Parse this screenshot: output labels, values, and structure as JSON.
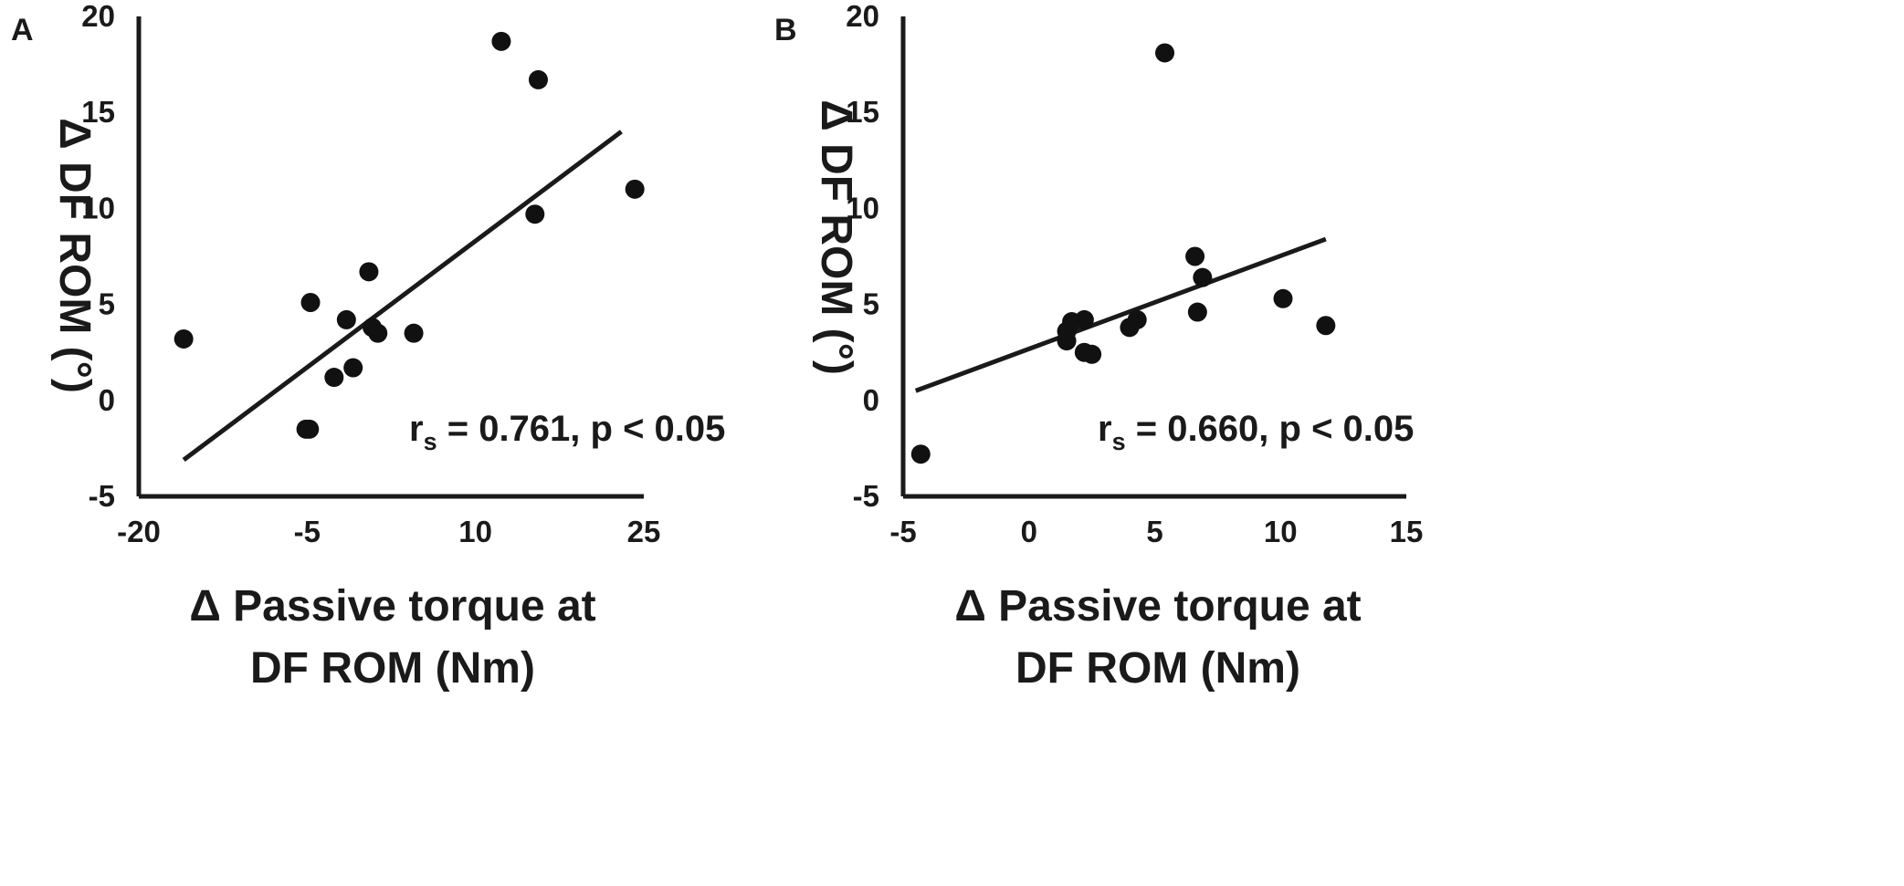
{
  "chart_data": [
    {
      "type": "scatter",
      "panel": "A",
      "xlabel": [
        "Δ Passive torque at",
        "DF ROM (Nm)"
      ],
      "ylabel": "Δ DF ROM (°)",
      "xlim": [
        -20,
        25
      ],
      "ylim": [
        -5,
        20
      ],
      "x_ticks": [
        "-20",
        "-5",
        "10",
        "25"
      ],
      "y_ticks": [
        "20",
        "15",
        "10",
        "5",
        "0",
        "-5"
      ],
      "x_tick_values": [
        -20,
        -5,
        10,
        25
      ],
      "y_tick_values": [
        20,
        15,
        10,
        5,
        0,
        -5
      ],
      "points": [
        {
          "x": -16.0,
          "y": 3.2
        },
        {
          "x": -4.7,
          "y": 5.1
        },
        {
          "x": -5.1,
          "y": -1.5
        },
        {
          "x": -4.8,
          "y": -1.5
        },
        {
          "x": 0.5,
          "y": 6.7
        },
        {
          "x": -1.5,
          "y": 4.2
        },
        {
          "x": 0.8,
          "y": 3.8
        },
        {
          "x": 1.3,
          "y": 3.5
        },
        {
          "x": 4.5,
          "y": 3.5
        },
        {
          "x": -0.9,
          "y": 1.7
        },
        {
          "x": -2.6,
          "y": 1.2
        },
        {
          "x": 12.3,
          "y": 18.7
        },
        {
          "x": 15.6,
          "y": 16.7
        },
        {
          "x": 15.3,
          "y": 9.7
        },
        {
          "x": 24.2,
          "y": 11.0
        }
      ],
      "trendline": {
        "x": [
          -16.0,
          23.0
        ],
        "y": [
          -3.1,
          14.0
        ]
      },
      "annotation": {
        "r_main": "r",
        "r_sub": "s",
        "text": " = 0.761, p < 0.05"
      }
    },
    {
      "type": "scatter",
      "panel": "B",
      "xlabel": [
        "Δ Passive torque at",
        "DF ROM (Nm)"
      ],
      "ylabel": "Δ DF ROM (°)",
      "xlim": [
        -5,
        15
      ],
      "ylim": [
        -5,
        20
      ],
      "x_ticks": [
        "-5",
        "0",
        "5",
        "10",
        "15"
      ],
      "y_ticks": [
        "20",
        "15",
        "10",
        "5",
        "0",
        "-5"
      ],
      "x_tick_values": [
        -5,
        0,
        5,
        10,
        15
      ],
      "y_tick_values": [
        20,
        15,
        10,
        5,
        0,
        -5
      ],
      "points": [
        {
          "x": -4.3,
          "y": -2.8
        },
        {
          "x": 1.5,
          "y": 3.1
        },
        {
          "x": 1.5,
          "y": 3.6
        },
        {
          "x": 1.7,
          "y": 4.1
        },
        {
          "x": 2.2,
          "y": 4.2
        },
        {
          "x": 2.2,
          "y": 2.5
        },
        {
          "x": 2.5,
          "y": 2.4
        },
        {
          "x": 4.0,
          "y": 3.8
        },
        {
          "x": 4.3,
          "y": 4.2
        },
        {
          "x": 5.4,
          "y": 18.1
        },
        {
          "x": 6.6,
          "y": 7.5
        },
        {
          "x": 6.9,
          "y": 6.4
        },
        {
          "x": 6.7,
          "y": 4.6
        },
        {
          "x": 10.1,
          "y": 5.3
        },
        {
          "x": 11.8,
          "y": 3.9
        }
      ],
      "trendline": {
        "x": [
          -4.5,
          11.8
        ],
        "y": [
          0.5,
          8.4
        ]
      },
      "annotation": {
        "r_main": "r",
        "r_sub": "s",
        "text": " = 0.660, p < 0.05"
      }
    }
  ]
}
